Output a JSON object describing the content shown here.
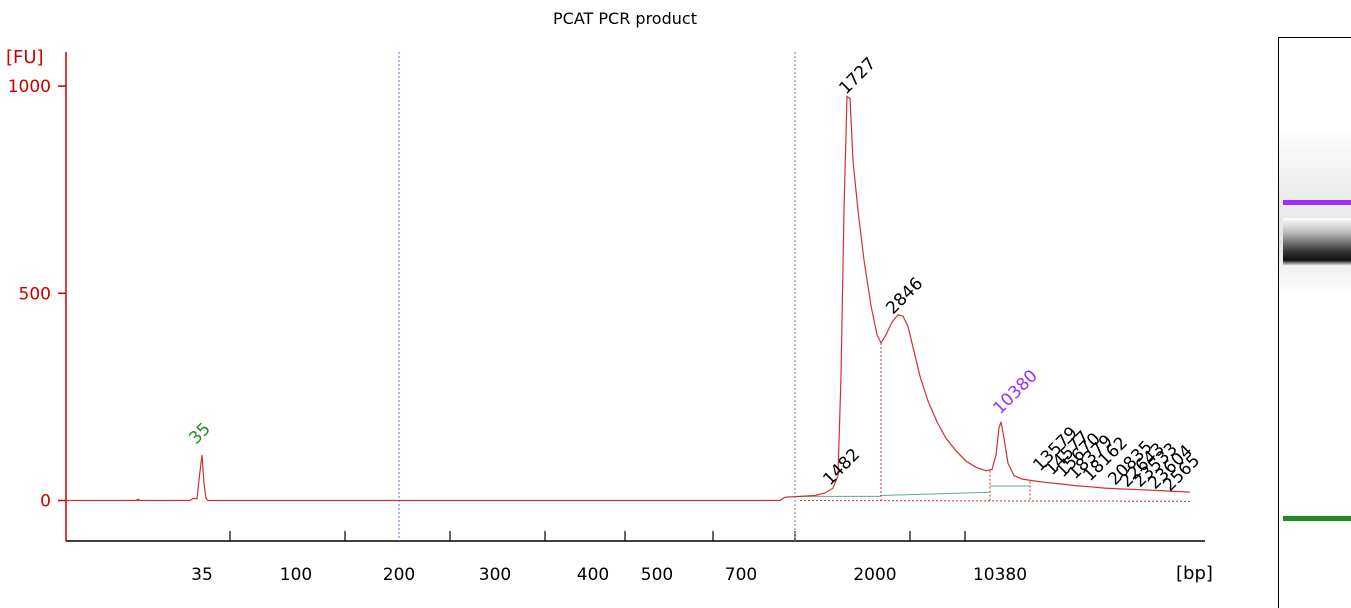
{
  "chart_data": {
    "type": "line",
    "title": "PCAT PCR product",
    "ylabel": "[FU]",
    "xlabel": "[bp]",
    "ylim": [
      -100,
      1080
    ],
    "y_ticks": [
      0,
      500,
      1000
    ],
    "x_tick_labels": [
      "35",
      "100",
      "200",
      "300",
      "400",
      "500",
      "700",
      "2000",
      "10380"
    ],
    "colors": {
      "axis": "#cc0000",
      "trace": "#cc3333",
      "marker_lower": "#228b22",
      "marker_upper": "#9b30ff",
      "guide": "#6a6ac8",
      "baseline": "#5fa8a0"
    },
    "peaks": [
      {
        "label": "35",
        "bp": 35,
        "fu": 110,
        "color": "marker_lower"
      },
      {
        "label": "1482",
        "bp": 1482,
        "fu": 20,
        "color": "text"
      },
      {
        "label": "1727",
        "bp": 1727,
        "fu": 975,
        "color": "text"
      },
      {
        "label": "2846",
        "bp": 2846,
        "fu": 450,
        "color": "text"
      },
      {
        "label": "10380",
        "bp": 10380,
        "fu": 190,
        "color": "marker_upper"
      },
      {
        "label": "13579",
        "bp": 13579,
        "fu": 60,
        "color": "text"
      },
      {
        "label": "14577",
        "bp": 14577,
        "fu": 50,
        "color": "text"
      },
      {
        "label": "15670",
        "bp": 15670,
        "fu": 45,
        "color": "text"
      },
      {
        "label": "18379",
        "bp": 18379,
        "fu": 40,
        "color": "text"
      },
      {
        "label": "18162",
        "bp": 18162,
        "fu": 38,
        "color": "text"
      },
      {
        "label": "20835",
        "bp": 20835,
        "fu": 30,
        "color": "text"
      },
      {
        "label": "22643",
        "bp": 22643,
        "fu": 28,
        "color": "text"
      },
      {
        "label": "23533",
        "bp": 23533,
        "fu": 26,
        "color": "text"
      },
      {
        "label": "23604",
        "bp": 23604,
        "fu": 24,
        "color": "text"
      },
      {
        "label": "2565",
        "bp": 2565,
        "fu": 20,
        "color": "text"
      }
    ],
    "grid": false,
    "legend": "none"
  },
  "gel": {
    "bands": [
      {
        "name": "upper-marker-band",
        "color": "#9b30ff"
      },
      {
        "name": "product-band",
        "color": "#111111"
      },
      {
        "name": "lower-marker-band",
        "color": "#228b22"
      }
    ]
  }
}
